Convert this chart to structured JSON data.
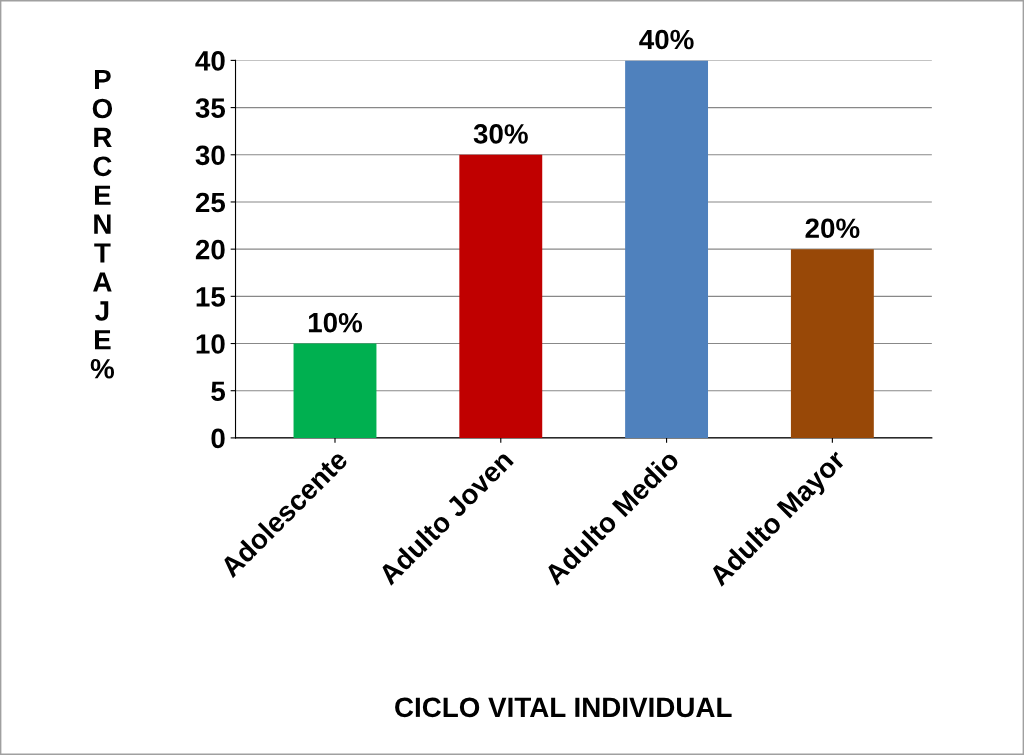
{
  "chart_data": {
    "type": "bar",
    "xlabel": "CICLO VITAL INDIVIDUAL",
    "ylabel": "PORCENTAJE %",
    "categories": [
      "Adolescente",
      "Adulto Joven",
      "Adulto Medio",
      "Adulto Mayor"
    ],
    "values": [
      10,
      30,
      40,
      20
    ],
    "colors": [
      "#00b050",
      "#c00000",
      "#4f81bd",
      "#984807"
    ],
    "value_labels": [
      "10%",
      "30%",
      "40%",
      "20%"
    ],
    "ylim": [
      0,
      40
    ],
    "yticks": [
      0,
      5,
      10,
      15,
      20,
      25,
      30,
      35,
      40
    ],
    "grid": "y"
  }
}
